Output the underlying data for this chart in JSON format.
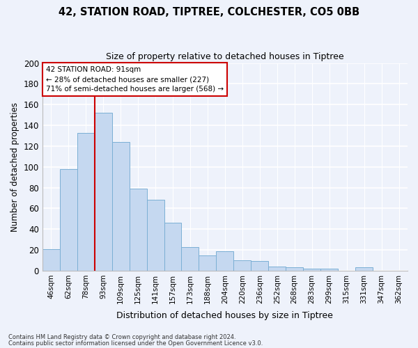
{
  "title1": "42, STATION ROAD, TIPTREE, COLCHESTER, CO5 0BB",
  "title2": "Size of property relative to detached houses in Tiptree",
  "xlabel": "Distribution of detached houses by size in Tiptree",
  "ylabel": "Number of detached properties",
  "categories": [
    "46sqm",
    "62sqm",
    "78sqm",
    "93sqm",
    "109sqm",
    "125sqm",
    "141sqm",
    "157sqm",
    "173sqm",
    "188sqm",
    "204sqm",
    "220sqm",
    "236sqm",
    "252sqm",
    "268sqm",
    "283sqm",
    "299sqm",
    "315sqm",
    "331sqm",
    "347sqm",
    "362sqm"
  ],
  "values": [
    21,
    98,
    133,
    152,
    124,
    79,
    68,
    46,
    23,
    15,
    19,
    10,
    9,
    4,
    3,
    2,
    2,
    0,
    3,
    0,
    0
  ],
  "bar_color": "#c5d8f0",
  "bar_edge_color": "#7bafd4",
  "property_label": "42 STATION ROAD: 91sqm",
  "annotation_line1": "← 28% of detached houses are smaller (227)",
  "annotation_line2": "71% of semi-detached houses are larger (568) →",
  "vline_color": "#cc0000",
  "vline_bin_index": 3,
  "ylim": [
    0,
    200
  ],
  "yticks": [
    0,
    20,
    40,
    60,
    80,
    100,
    120,
    140,
    160,
    180,
    200
  ],
  "footer1": "Contains HM Land Registry data © Crown copyright and database right 2024.",
  "footer2": "Contains public sector information licensed under the Open Government Licence v3.0.",
  "background_color": "#eef2fb",
  "grid_color": "#ffffff",
  "annotation_box_color": "#ffffff",
  "annotation_box_edge": "#cc0000",
  "title1_fontsize": 10.5,
  "title2_fontsize": 9.0
}
